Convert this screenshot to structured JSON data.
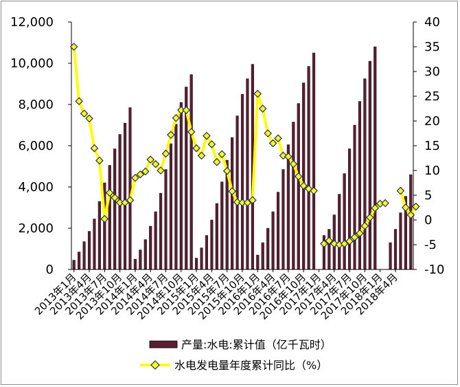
{
  "chart_data": {
    "type": "bar+line",
    "title": "",
    "x_ticks": [
      "2013年1月",
      "2013年4月",
      "2013年7月",
      "2013年10月",
      "2014年1月",
      "2014年4月",
      "2014年7月",
      "2014年10月",
      "2015年1月",
      "2015年4月",
      "2015年7月",
      "2015年10月",
      "2016年1月",
      "2016年4月",
      "2016年7月",
      "2016年10月",
      "2017年1月",
      "2017年4月",
      "2017年7月",
      "2017年10月",
      "2018年1月",
      "2018年4月"
    ],
    "y_left": {
      "min": 0,
      "max": 12000,
      "ticks": [
        "0",
        "2,000",
        "4,000",
        "6,000",
        "8,000",
        "10,000",
        "12,000"
      ]
    },
    "y_right": {
      "min": -10,
      "max": 40,
      "ticks": [
        "-10",
        "-5",
        "0",
        "5",
        "10",
        "15",
        "20",
        "25",
        "30",
        "35",
        "40"
      ]
    },
    "bar_color": "#5a1e32",
    "line_color": "#ffff00",
    "marker_color": "#ffff00",
    "marker_edge": "#1c2a80",
    "series": [
      {
        "name": "产量:水电:累计值（亿千瓦时）",
        "kind": "bar",
        "values": [
          450,
          850,
          1350,
          1850,
          2450,
          3300,
          4200,
          5050,
          5850,
          6550,
          7100,
          7850,
          500,
          950,
          1450,
          2100,
          2800,
          3700,
          4850,
          6100,
          7050,
          8100,
          8850,
          9450,
          550,
          1050,
          1650,
          2400,
          3200,
          4250,
          5300,
          6400,
          7450,
          8500,
          9250,
          9950,
          700,
          1300,
          2000,
          2800,
          3750,
          4850,
          6050,
          7150,
          8050,
          9050,
          9850,
          10500,
          null,
          1650,
          1950,
          2650,
          3650,
          4650,
          5850,
          7000,
          8150,
          9250,
          10100,
          10800,
          null,
          null,
          1300,
          1950,
          2750,
          3550,
          4600
        ]
      },
      {
        "name": "水电发电量年度累计同比（%）",
        "kind": "line",
        "values": [
          35,
          24,
          21.5,
          20.5,
          14.5,
          12,
          0.2,
          5.5,
          4.5,
          3.5,
          3.5,
          4,
          8.5,
          9.2,
          9.8,
          12.2,
          11.3,
          10,
          13.4,
          17.2,
          20.6,
          22.2,
          22.2,
          17.8,
          14.5,
          13,
          17,
          15.3,
          11.7,
          13.3,
          9.9,
          5.8,
          3.6,
          3.5,
          3.5,
          4,
          25.5,
          22.5,
          17.5,
          15.5,
          16.5,
          13,
          12.8,
          11.3,
          8.8,
          6.9,
          6.3,
          5.9,
          null,
          -4.8,
          -4.2,
          -4.8,
          -5,
          -4.8,
          -4.3,
          -3.5,
          -2.7,
          -1.2,
          0.5,
          2.4,
          3.3,
          3.4,
          null,
          null,
          5.9,
          2.5,
          1,
          2.7
        ]
      }
    ],
    "legend": {
      "position": "bottom"
    },
    "grid": false
  }
}
